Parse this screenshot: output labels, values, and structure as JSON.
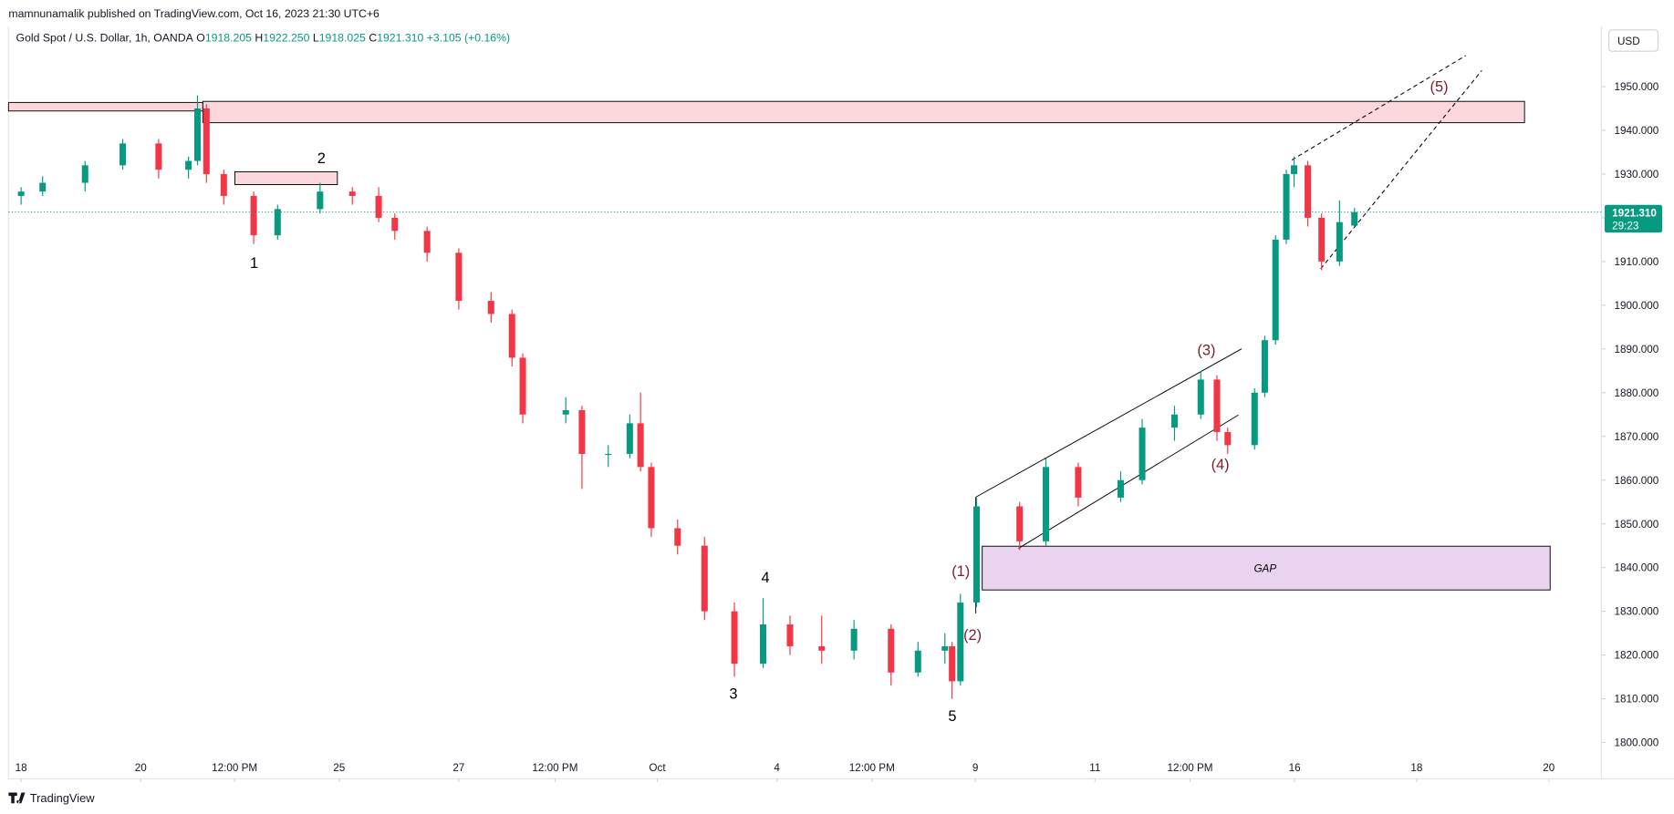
{
  "header": {
    "publisher": "mamnunamalik published on TradingView.com, Oct 16, 2023 21:30 UTC+6",
    "symbol": "Gold Spot / U.S. Dollar, 1h, OANDA",
    "ohlc": [
      {
        "label": "O",
        "value": "1918.205"
      },
      {
        "label": "H",
        "value": "1922.250"
      },
      {
        "label": "L",
        "value": "1918.025"
      },
      {
        "label": "C",
        "value": "1921.310"
      }
    ],
    "change": "+3.105 (+0.16%)",
    "currency": "USD"
  },
  "footer": {
    "brand": "TradingView"
  },
  "chart_data": {
    "type": "candlestick",
    "x": [
      0,
      0.36,
      1.07,
      1.7,
      2.3,
      2.8,
      2.95,
      3.1,
      3.39,
      3.89,
      4.29,
      5,
      5.54,
      5.98,
      6.25,
      6.79,
      7.32,
      7.86,
      8.21,
      8.39,
      9.11,
      9.38,
      9.82,
      10.18,
      10.36,
      10.54,
      10.98,
      11.43,
      11.93,
      12.41,
      12.86,
      13.39,
      13.93,
      14.55,
      15,
      15.45,
      15.57,
      15.71,
      15.98,
      16.7,
      17.14,
      17.68,
      18.39,
      18.75,
      19.29,
      19.73,
      20,
      20.18,
      20.63,
      20.8,
      20.98,
      21.16,
      21.29,
      21.52,
      21.75,
      22.05,
      22.3
    ],
    "open": [
      1925,
      1926,
      1928,
      1932,
      1937,
      1931,
      1933,
      1945,
      1930,
      1925,
      1916,
      1922,
      1926,
      1925,
      1920,
      1917,
      1912,
      1901,
      1898,
      1888,
      1875,
      1876,
      1866,
      1866,
      1873,
      1863,
      1849,
      1845,
      1830,
      1818,
      1827,
      1822,
      1821,
      1826,
      1816,
      1821,
      1822,
      1814,
      1832,
      1854,
      1846,
      1863,
      1856,
      1860,
      1872,
      1875,
      1883,
      1871,
      1868,
      1880,
      1892,
      1915,
      1930,
      1932,
      1920,
      1910,
      1918.205
    ],
    "high": [
      1927,
      1929.5,
      1933,
      1938,
      1938,
      1934,
      1948,
      1946,
      1931,
      1926,
      1923,
      1928,
      1927,
      1927,
      1921,
      1918,
      1913,
      1903,
      1899,
      1889,
      1879,
      1877,
      1868,
      1875,
      1880,
      1864,
      1851,
      1847,
      1832,
      1833,
      1829,
      1829,
      1828,
      1827,
      1823,
      1825,
      1823,
      1834,
      1856,
      1855,
      1865,
      1864,
      1862,
      1874,
      1877,
      1885,
      1884,
      1872,
      1881,
      1893,
      1916,
      1931,
      1934,
      1933,
      1921,
      1924,
      1922.25
    ],
    "low": [
      1923,
      1925,
      1926,
      1931,
      1929,
      1929,
      1932,
      1928,
      1923,
      1914,
      1915,
      1921,
      1923,
      1919,
      1915,
      1910,
      1899,
      1896,
      1886,
      1873,
      1873,
      1858,
      1863,
      1865,
      1862,
      1847,
      1843,
      1828,
      1815,
      1817,
      1820,
      1818,
      1819,
      1813,
      1815,
      1818,
      1810,
      1813,
      1831,
      1844,
      1845,
      1854,
      1855,
      1859,
      1869,
      1874,
      1869,
      1866,
      1867,
      1879,
      1891,
      1914,
      1927,
      1918,
      1908,
      1909,
      1918.025
    ],
    "close": [
      1926,
      1928,
      1932,
      1937,
      1931,
      1933,
      1945,
      1930,
      1925,
      1916,
      1922,
      1926,
      1925,
      1920,
      1917,
      1912,
      1901,
      1898,
      1888,
      1875,
      1876,
      1866,
      1866,
      1873,
      1863,
      1849,
      1845,
      1830,
      1818,
      1827,
      1822,
      1821,
      1826,
      1816,
      1821,
      1822,
      1814,
      1832,
      1854,
      1846,
      1863,
      1856,
      1860,
      1872,
      1875,
      1883,
      1871,
      1868,
      1880,
      1892,
      1915,
      1930,
      1932,
      1920,
      1910,
      1919,
      1921.31
    ],
    "up_color": "#089981",
    "down_color": "#f23645",
    "xlim": [
      -0.21,
      26.43
    ],
    "xticks": [
      {
        "value": 0,
        "label": "18"
      },
      {
        "value": 2,
        "label": "20"
      },
      {
        "value": 3.57,
        "label": "12:00 PM"
      },
      {
        "value": 5.32,
        "label": "25"
      },
      {
        "value": 7.32,
        "label": "27"
      },
      {
        "value": 8.93,
        "label": "12:00 PM"
      },
      {
        "value": 10.64,
        "label": "Oct"
      },
      {
        "value": 12.64,
        "label": "4"
      },
      {
        "value": 14.23,
        "label": "12:00 PM"
      },
      {
        "value": 15.96,
        "label": "9"
      },
      {
        "value": 17.96,
        "label": "11"
      },
      {
        "value": 19.55,
        "label": "12:00 PM"
      },
      {
        "value": 21.3,
        "label": "16"
      },
      {
        "value": 23.34,
        "label": "18"
      },
      {
        "value": 25.55,
        "label": "20"
      }
    ],
    "ylim": [
      1791.7,
      1963.7
    ],
    "yticks": [
      {
        "value": 1800,
        "label": "1800.000"
      },
      {
        "value": 1810,
        "label": "1810.000"
      },
      {
        "value": 1820,
        "label": "1820.000"
      },
      {
        "value": 1830,
        "label": "1830.000"
      },
      {
        "value": 1840,
        "label": "1840.000"
      },
      {
        "value": 1850,
        "label": "1850.000"
      },
      {
        "value": 1860,
        "label": "1860.000"
      },
      {
        "value": 1870,
        "label": "1870.000"
      },
      {
        "value": 1880,
        "label": "1880.000"
      },
      {
        "value": 1890,
        "label": "1890.000"
      },
      {
        "value": 1900,
        "label": "1900.000"
      },
      {
        "value": 1910,
        "label": "1910.000"
      },
      {
        "value": 1920,
        "label": "1920.000"
      },
      {
        "value": 1930,
        "label": "1930.000"
      },
      {
        "value": 1940,
        "label": "1940.000"
      },
      {
        "value": 1950,
        "label": "1950.000"
      }
    ],
    "grid": false,
    "last_price": {
      "value": 1921.31,
      "label": "1921.310"
    },
    "countdown": "29:23",
    "annotations": [
      "1",
      "2",
      "3",
      "4",
      "5",
      "(1)",
      "(2)",
      "(3)",
      "(4)",
      "(5)",
      "GAP"
    ]
  }
}
